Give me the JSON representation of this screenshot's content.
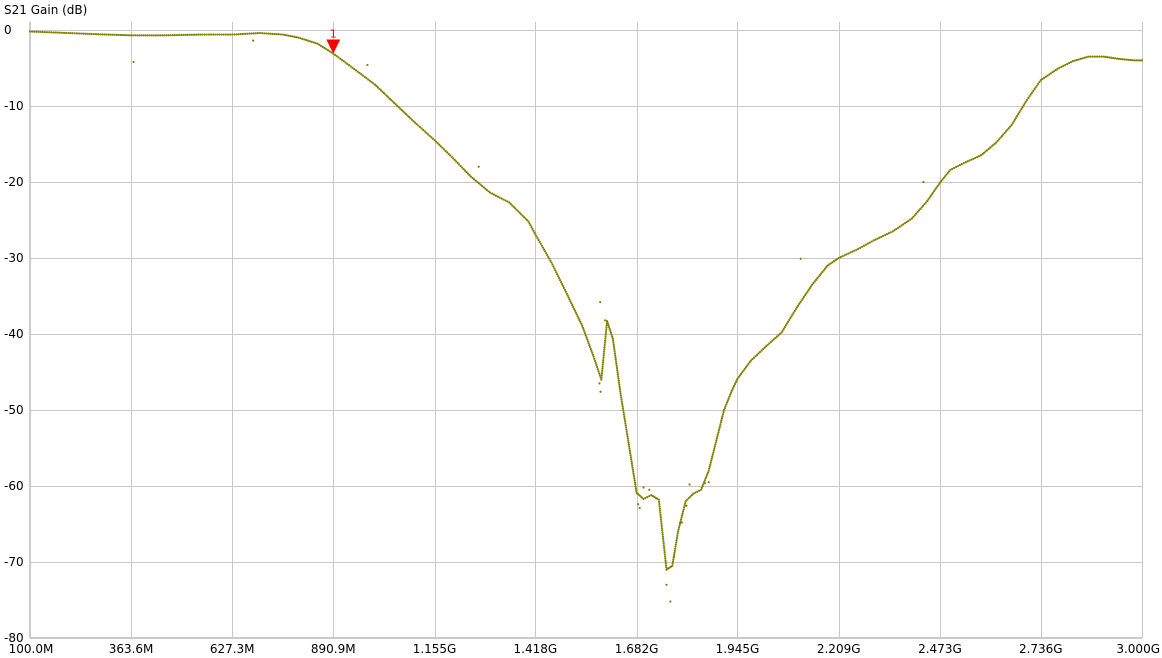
{
  "chart_data": {
    "type": "scatter",
    "title": "",
    "ylabel": "S21 Gain (dB)",
    "xlabel": "",
    "xlim": [
      100,
      3000
    ],
    "ylim": [
      -80,
      0
    ],
    "grid": true,
    "x_unit": "MHz",
    "x_tick_values": [
      100,
      363.6,
      627.3,
      890.9,
      1155,
      1418,
      1682,
      1945,
      2209,
      2473,
      2736,
      3000
    ],
    "x_tick_labels": [
      "100.0M",
      "363.6M",
      "627.3M",
      "890.9M",
      "1.155G",
      "1.418G",
      "1.682G",
      "1.945G",
      "2.209G",
      "2.473G",
      "2.736G",
      "3.000G"
    ],
    "y_tick_values": [
      0,
      -10,
      -20,
      -30,
      -40,
      -50,
      -60,
      -70,
      -80
    ],
    "y_tick_labels": [
      "0",
      "-10",
      "-20",
      "-30",
      "-40",
      "-50",
      "-60",
      "-70",
      "-80"
    ],
    "series": [
      {
        "color": "#808000",
        "curve": [
          [
            100,
            -0.2
          ],
          [
            200,
            -0.4
          ],
          [
            300,
            -0.6
          ],
          [
            363.6,
            -0.7
          ],
          [
            450,
            -0.7
          ],
          [
            550,
            -0.6
          ],
          [
            627.3,
            -0.6
          ],
          [
            700,
            -0.4
          ],
          [
            760,
            -0.6
          ],
          [
            800,
            -1.0
          ],
          [
            850,
            -1.8
          ],
          [
            890.9,
            -3.1
          ],
          [
            950,
            -5.3
          ],
          [
            1000,
            -7.2
          ],
          [
            1050,
            -9.6
          ],
          [
            1100,
            -12.0
          ],
          [
            1155,
            -14.5
          ],
          [
            1200,
            -16.7
          ],
          [
            1250,
            -19.3
          ],
          [
            1300,
            -21.4
          ],
          [
            1350,
            -22.7
          ],
          [
            1400,
            -25.2
          ],
          [
            1418,
            -26.9
          ],
          [
            1460,
            -30.6
          ],
          [
            1500,
            -34.7
          ],
          [
            1540,
            -38.9
          ],
          [
            1570,
            -43.0
          ],
          [
            1590,
            -46.0
          ],
          [
            1605,
            -38.3
          ],
          [
            1620,
            -40.6
          ],
          [
            1640,
            -47.8
          ],
          [
            1660,
            -54.0
          ],
          [
            1682,
            -60.9
          ],
          [
            1700,
            -61.7
          ],
          [
            1720,
            -61.2
          ],
          [
            1740,
            -61.8
          ],
          [
            1760,
            -71.0
          ],
          [
            1775,
            -70.5
          ],
          [
            1790,
            -66.0
          ],
          [
            1810,
            -62.0
          ],
          [
            1830,
            -61.0
          ],
          [
            1850,
            -60.5
          ],
          [
            1870,
            -58.0
          ],
          [
            1890,
            -54.0
          ],
          [
            1910,
            -50.0
          ],
          [
            1930,
            -47.5
          ],
          [
            1945,
            -45.9
          ],
          [
            1980,
            -43.5
          ],
          [
            2020,
            -41.6
          ],
          [
            2060,
            -39.8
          ],
          [
            2100,
            -36.5
          ],
          [
            2140,
            -33.5
          ],
          [
            2180,
            -31.0
          ],
          [
            2209,
            -30.0
          ],
          [
            2260,
            -28.8
          ],
          [
            2300,
            -27.7
          ],
          [
            2350,
            -26.5
          ],
          [
            2400,
            -24.8
          ],
          [
            2440,
            -22.5
          ],
          [
            2473,
            -20.1
          ],
          [
            2500,
            -18.4
          ],
          [
            2540,
            -17.4
          ],
          [
            2580,
            -16.5
          ],
          [
            2620,
            -14.8
          ],
          [
            2660,
            -12.5
          ],
          [
            2700,
            -9.2
          ],
          [
            2736,
            -6.6
          ],
          [
            2780,
            -5.1
          ],
          [
            2820,
            -4.1
          ],
          [
            2860,
            -3.5
          ],
          [
            2900,
            -3.5
          ],
          [
            2940,
            -3.8
          ],
          [
            2980,
            -4.0
          ],
          [
            3000,
            -4.0
          ]
        ],
        "outliers": [
          [
            370,
            -4.2
          ],
          [
            682,
            -1.4
          ],
          [
            980,
            -4.6
          ],
          [
            1270,
            -18.0
          ],
          [
            1587,
            -35.8
          ],
          [
            1585,
            -46.5
          ],
          [
            1588,
            -47.6
          ],
          [
            1600,
            -38.2
          ],
          [
            1686,
            -62.4
          ],
          [
            1690,
            -62.9
          ],
          [
            1700,
            -60.2
          ],
          [
            1715,
            -60.5
          ],
          [
            1760,
            -73.0
          ],
          [
            1770,
            -75.2
          ],
          [
            1780,
            -69.3
          ],
          [
            1795,
            -64.9
          ],
          [
            1800,
            -64.8
          ],
          [
            1812,
            -62.6
          ],
          [
            1820,
            -59.8
          ],
          [
            1860,
            -59.6
          ],
          [
            1870,
            -59.5
          ],
          [
            2110,
            -30.1
          ],
          [
            2430,
            -20.0
          ]
        ]
      }
    ],
    "markers": [
      {
        "label": "1",
        "x": 890.9,
        "y": -3.1,
        "color": "#ff0000"
      }
    ]
  }
}
